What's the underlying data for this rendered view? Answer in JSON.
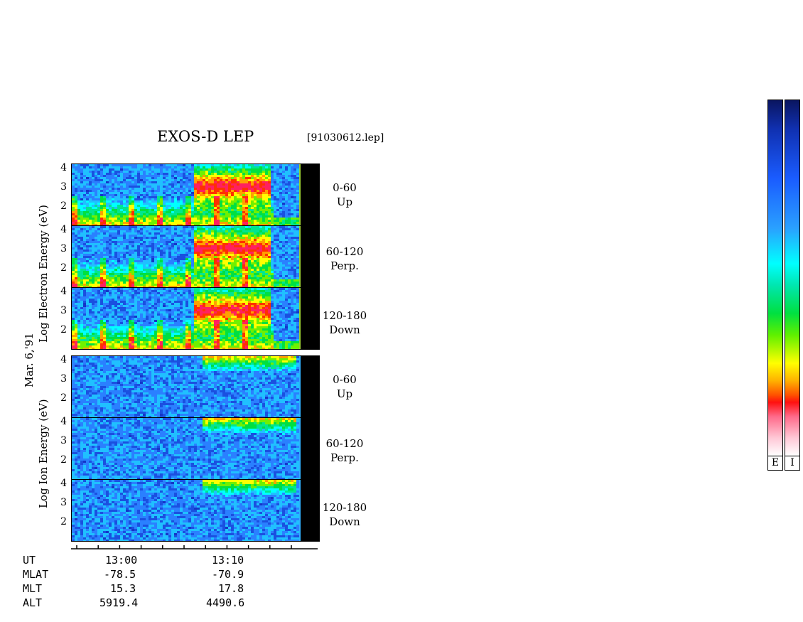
{
  "header": {
    "title": "EXOS-D LEP",
    "file": "[91030612.lep]"
  },
  "date_label": "Mar. 6,'91",
  "electron_axis": {
    "line1": "Log  Electron  Energy (eV)"
  },
  "ion_axis": {
    "line1": "Log  Ion  Energy (eV)"
  },
  "yticks": [
    "4",
    "3",
    "2"
  ],
  "channels": [
    {
      "range": "0-60",
      "dir": "Up"
    },
    {
      "range": "60-120",
      "dir": "Perp."
    },
    {
      "range": "120-180",
      "dir": "Down"
    },
    {
      "range": "0-60",
      "dir": "Up"
    },
    {
      "range": "60-120",
      "dir": "Perp."
    },
    {
      "range": "120-180",
      "dir": "Down"
    }
  ],
  "footer": {
    "rows": [
      {
        "label": "UT",
        "v1": "13:00",
        "v2": "13:10"
      },
      {
        "label": "MLAT",
        "v1": "-78.5",
        "v2": "-70.9"
      },
      {
        "label": "MLT",
        "v1": "15.3",
        "v2": "17.8"
      },
      {
        "label": "ALT",
        "v1": "5919.4",
        "v2": "4490.6"
      }
    ]
  },
  "colorbars": [
    {
      "label": "E"
    },
    {
      "label": "I"
    }
  ],
  "chart_data": {
    "type": "heatmap",
    "title": "EXOS-D LEP",
    "xlabel": "UT",
    "x_ticks": [
      "13:00",
      "13:10"
    ],
    "ylim": [
      1,
      4.2
    ],
    "y_ticks": [
      2,
      3,
      4
    ],
    "panels": [
      {
        "species": "Electron",
        "channel": "0-60 Up",
        "peak_flux_time": "13:08",
        "peak_energy_log": 3.3
      },
      {
        "species": "Electron",
        "channel": "60-120 Perp.",
        "peak_flux_time": "13:08",
        "peak_energy_log": 3.3
      },
      {
        "species": "Electron",
        "channel": "120-180 Down",
        "peak_flux_time": "13:08",
        "peak_energy_log": 3.3
      },
      {
        "species": "Ion",
        "channel": "0-60 Up",
        "peak_flux_time": "13:15",
        "peak_energy_log": 4.0
      },
      {
        "species": "Ion",
        "channel": "60-120 Perp.",
        "peak_flux_time": "13:15",
        "peak_energy_log": 4.0
      },
      {
        "species": "Ion",
        "channel": "120-180 Down",
        "peak_flux_time": "13:14",
        "peak_energy_log": 4.0
      }
    ],
    "colors": [
      "#0a1560",
      "#1a5cff",
      "#00ffff",
      "#00e040",
      "#ffff00",
      "#ff1010",
      "#ffffff"
    ]
  }
}
